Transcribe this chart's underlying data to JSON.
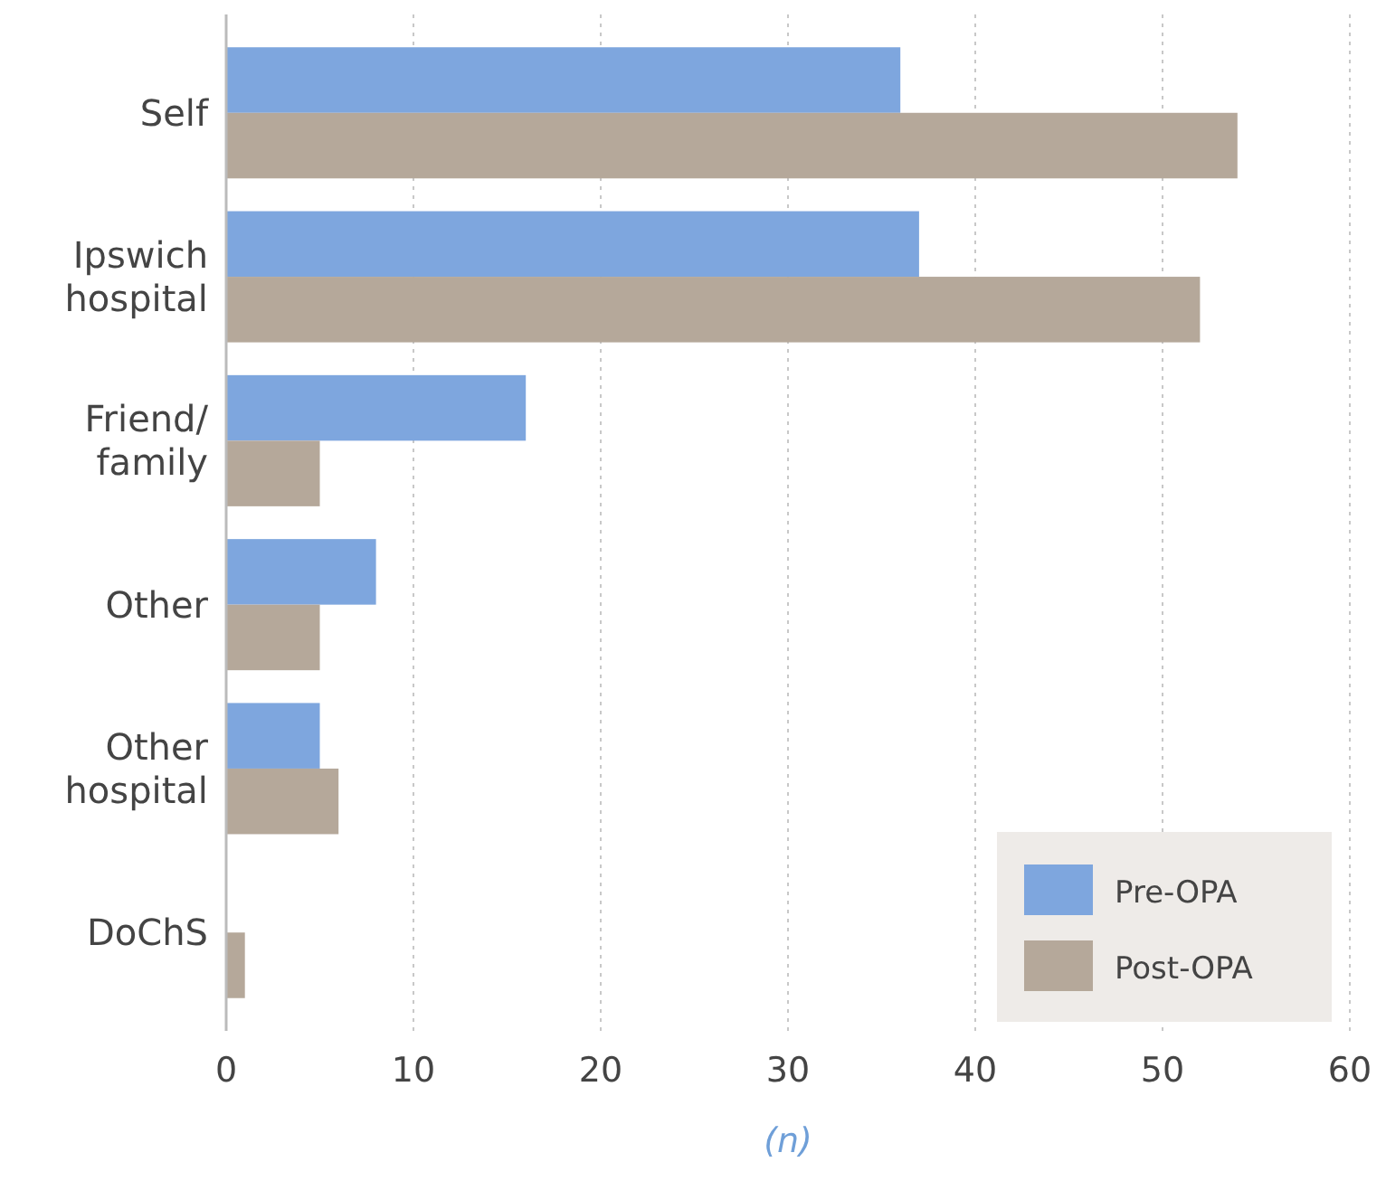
{
  "chart_data": {
    "type": "bar",
    "orientation": "horizontal",
    "xlabel": "(n)",
    "categories": [
      "Self",
      "Ipswich hospital",
      "Friend/ family",
      "Other",
      "Other hospital",
      "DoChS"
    ],
    "series": [
      {
        "name": "Pre-OPA",
        "color": "#7ea6de",
        "values": [
          36,
          37,
          16,
          8,
          5,
          0
        ]
      },
      {
        "name": "Post-OPA",
        "color": "#b5a89a",
        "values": [
          54,
          52,
          5,
          5,
          6,
          1
        ]
      }
    ],
    "xlim": [
      0,
      60
    ],
    "xticks": [
      0,
      10,
      20,
      30,
      40,
      50,
      60
    ],
    "grid": "x",
    "legend": "bottom right"
  }
}
